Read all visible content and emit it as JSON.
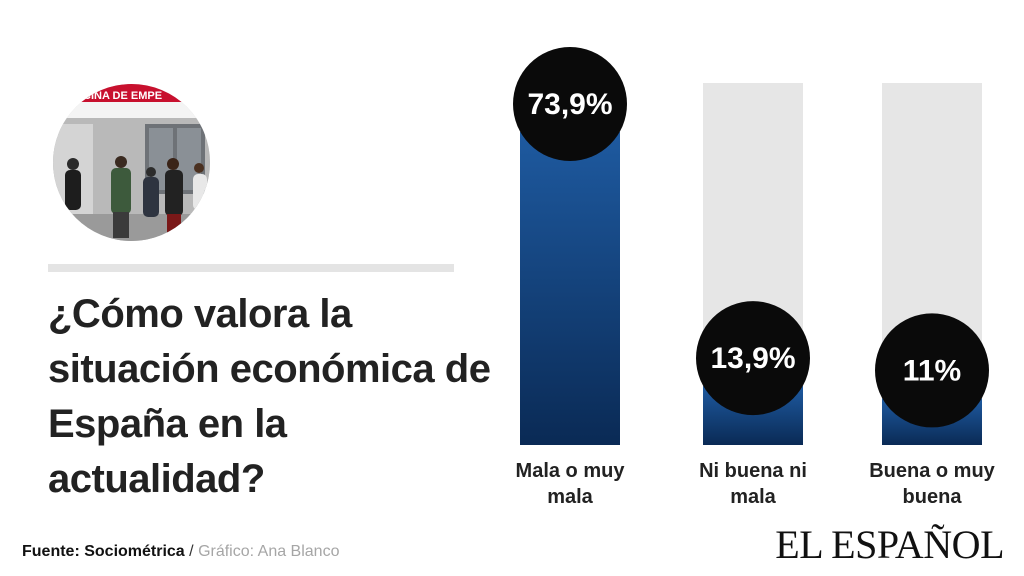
{
  "colors": {
    "bar_top": "#1e5aa0",
    "bar_bottom": "#0a2a55",
    "track": "#e6e6e6",
    "bubble": "#0a0a0a",
    "bubble_text": "#ffffff"
  },
  "photo": {
    "sign_text": "CINA DE EMPE"
  },
  "question": "¿Cómo valora la situación económica de España en la actualidad?",
  "chart_data": {
    "type": "bar",
    "categories": [
      "Mala o muy mala",
      "Ni buena ni mala",
      "Buena o muy buena"
    ],
    "values": [
      73.9,
      13.9,
      11
    ],
    "value_labels": [
      "73,9%",
      "13,9%",
      "11%"
    ],
    "ylim": [
      0,
      73.9
    ],
    "unit": "%"
  },
  "footer": {
    "source": "Fuente: Sociométrica",
    "separator": "/",
    "credit": "Gráfico: Ana Blanco"
  },
  "brand": "EL ESPAÑOL"
}
